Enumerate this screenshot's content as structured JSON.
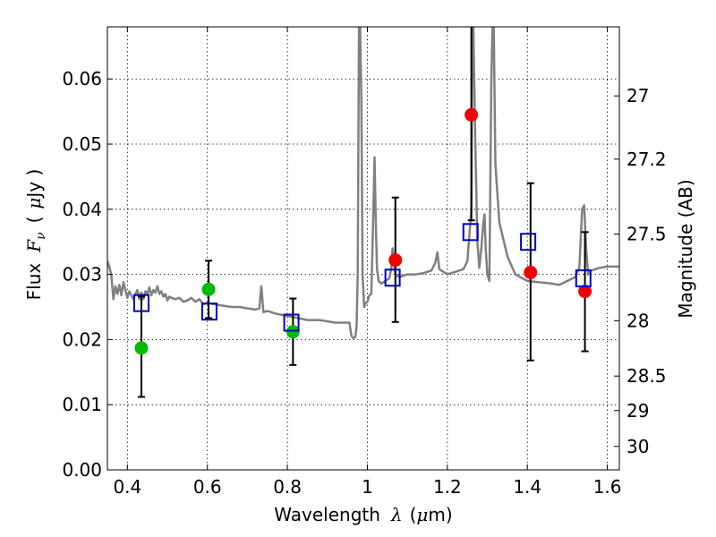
{
  "chart_data": {
    "type": "scatter",
    "xlabel_prefix": "Wavelength",
    "xlabel_symbol": "λ",
    "xlabel_unit_open": "(",
    "xlabel_unit_symbol": "μ",
    "xlabel_unit_rest": "m)",
    "ylabel_prefix": "Flux",
    "ylabel_symbol": "F",
    "ylabel_subscript": "ν",
    "ylabel_unit_open": "(",
    "ylabel_unit_symbol": "μ",
    "ylabel_unit_rest": "Jy )",
    "y2label": "Magnitude (AB)",
    "xlim": [
      0.35,
      1.63
    ],
    "ylim": [
      0.0,
      0.068
    ],
    "xticks": [
      0.4,
      0.6,
      0.8,
      1.0,
      1.2,
      1.4,
      1.6
    ],
    "xtick_labels": [
      "0.4",
      "0.6",
      "0.8",
      "1",
      "1.2",
      "1.4",
      "1.6"
    ],
    "yticks": [
      0.0,
      0.01,
      0.02,
      0.03,
      0.04,
      0.05,
      0.06
    ],
    "ytick_labels": [
      "0.00",
      "0.01",
      "0.02",
      "0.03",
      "0.04",
      "0.05",
      "0.06"
    ],
    "y2ticks": [
      {
        "label": "27",
        "flux": 0.0574
      },
      {
        "label": "27.2",
        "flux": 0.0477
      },
      {
        "label": "27.5",
        "flux": 0.0362
      },
      {
        "label": "28",
        "flux": 0.0229
      },
      {
        "label": "28.5",
        "flux": 0.0144
      },
      {
        "label": "29",
        "flux": 0.0091
      },
      {
        "label": "30",
        "flux": 0.0036
      }
    ],
    "colors": {
      "model": "#808080",
      "green": "#00bb00",
      "red": "#ee0000",
      "square": "#0000cc",
      "error": "#000000"
    },
    "model_spectrum": {
      "x": [
        0.35,
        0.355,
        0.36,
        0.365,
        0.37,
        0.375,
        0.38,
        0.385,
        0.39,
        0.395,
        0.4,
        0.405,
        0.41,
        0.415,
        0.42,
        0.425,
        0.43,
        0.435,
        0.44,
        0.445,
        0.45,
        0.455,
        0.46,
        0.465,
        0.47,
        0.475,
        0.48,
        0.485,
        0.49,
        0.495,
        0.5,
        0.505,
        0.51,
        0.52,
        0.53,
        0.54,
        0.55,
        0.56,
        0.57,
        0.58,
        0.59,
        0.6,
        0.62,
        0.64,
        0.66,
        0.68,
        0.7,
        0.72,
        0.73,
        0.735,
        0.74,
        0.75,
        0.77,
        0.8,
        0.82,
        0.85,
        0.88,
        0.9,
        0.92,
        0.94,
        0.955,
        0.96,
        0.965,
        0.97,
        0.973,
        0.976,
        0.979,
        0.982,
        0.985,
        0.988,
        0.992,
        0.996,
        1.0,
        1.005,
        1.01,
        1.015,
        1.018,
        1.021,
        1.024,
        1.028,
        1.035,
        1.045,
        1.055,
        1.06,
        1.063,
        1.066,
        1.07,
        1.08,
        1.1,
        1.12,
        1.14,
        1.16,
        1.17,
        1.175,
        1.18,
        1.2,
        1.22,
        1.24,
        1.25,
        1.26,
        1.262,
        1.265,
        1.27,
        1.275,
        1.28,
        1.285,
        1.29,
        1.293,
        1.296,
        1.3,
        1.305,
        1.31,
        1.313,
        1.316,
        1.32,
        1.33,
        1.35,
        1.37,
        1.4,
        1.43,
        1.46,
        1.48,
        1.5,
        1.52,
        1.53,
        1.537,
        1.542,
        1.547,
        1.552,
        1.56,
        1.58,
        1.6,
        1.63
      ],
      "y": [
        0.032,
        0.0312,
        0.0298,
        0.0262,
        0.0282,
        0.027,
        0.0284,
        0.0268,
        0.0288,
        0.0276,
        0.0264,
        0.0274,
        0.0268,
        0.0262,
        0.027,
        0.0276,
        0.0262,
        0.0272,
        0.0262,
        0.0274,
        0.027,
        0.028,
        0.0268,
        0.0276,
        0.0272,
        0.0282,
        0.027,
        0.0274,
        0.0266,
        0.027,
        0.026,
        0.0266,
        0.0264,
        0.0262,
        0.0264,
        0.0258,
        0.026,
        0.0264,
        0.0258,
        0.0262,
        0.0254,
        0.0256,
        0.0254,
        0.0252,
        0.025,
        0.025,
        0.0248,
        0.0246,
        0.0248,
        0.0282,
        0.0242,
        0.0244,
        0.024,
        0.0236,
        0.0234,
        0.023,
        0.023,
        0.0228,
        0.0226,
        0.0226,
        0.0226,
        0.0206,
        0.0202,
        0.0204,
        0.022,
        0.03,
        0.068,
        0.068,
        0.056,
        0.03,
        0.025,
        0.0256,
        0.0258,
        0.0268,
        0.027,
        0.04,
        0.048,
        0.038,
        0.031,
        0.029,
        0.0286,
        0.029,
        0.0294,
        0.031,
        0.034,
        0.0322,
        0.03,
        0.0296,
        0.03,
        0.03,
        0.0302,
        0.0306,
        0.0318,
        0.0334,
        0.0308,
        0.03,
        0.0304,
        0.0308,
        0.032,
        0.04,
        0.068,
        0.068,
        0.05,
        0.035,
        0.031,
        0.034,
        0.038,
        0.0392,
        0.034,
        0.03,
        0.029,
        0.06,
        0.068,
        0.068,
        0.047,
        0.038,
        0.0328,
        0.03,
        0.029,
        0.0288,
        0.0286,
        0.0284,
        0.029,
        0.0296,
        0.031,
        0.04,
        0.0406,
        0.034,
        0.03,
        0.0306,
        0.031,
        0.0312,
        0.0312
      ]
    },
    "series": [
      {
        "name": "green",
        "marker": "circle",
        "points": [
          {
            "x": 0.435,
            "y": 0.0187
          },
          {
            "x": 0.603,
            "y": 0.0277
          },
          {
            "x": 0.814,
            "y": 0.0212
          }
        ]
      },
      {
        "name": "red",
        "marker": "circle",
        "points": [
          {
            "x": 1.07,
            "y": 0.0322
          },
          {
            "x": 1.26,
            "y": 0.0545
          },
          {
            "x": 1.408,
            "y": 0.0303
          },
          {
            "x": 1.544,
            "y": 0.0274
          }
        ]
      },
      {
        "name": "model-bandpass",
        "marker": "square",
        "points": [
          {
            "x": 0.435,
            "y": 0.0256
          },
          {
            "x": 0.605,
            "y": 0.0243
          },
          {
            "x": 0.81,
            "y": 0.0226
          },
          {
            "x": 1.063,
            "y": 0.0295
          },
          {
            "x": 1.258,
            "y": 0.0365
          },
          {
            "x": 1.402,
            "y": 0.035
          },
          {
            "x": 1.54,
            "y": 0.0294
          }
        ]
      }
    ],
    "errorbars": [
      {
        "x": 0.435,
        "y": 0.0187,
        "lo": 0.0112,
        "hi": 0.0266
      },
      {
        "x": 0.603,
        "y": 0.0277,
        "lo": 0.0233,
        "hi": 0.0321
      },
      {
        "x": 0.814,
        "y": 0.0212,
        "lo": 0.0161,
        "hi": 0.0263
      },
      {
        "x": 1.07,
        "y": 0.0322,
        "lo": 0.0227,
        "hi": 0.0418
      },
      {
        "x": 1.26,
        "y": 0.0545,
        "lo": 0.0383,
        "hi": 0.07
      },
      {
        "x": 1.408,
        "y": 0.0303,
        "lo": 0.0168,
        "hi": 0.044
      },
      {
        "x": 1.544,
        "y": 0.0274,
        "lo": 0.0182,
        "hi": 0.0365
      }
    ]
  }
}
